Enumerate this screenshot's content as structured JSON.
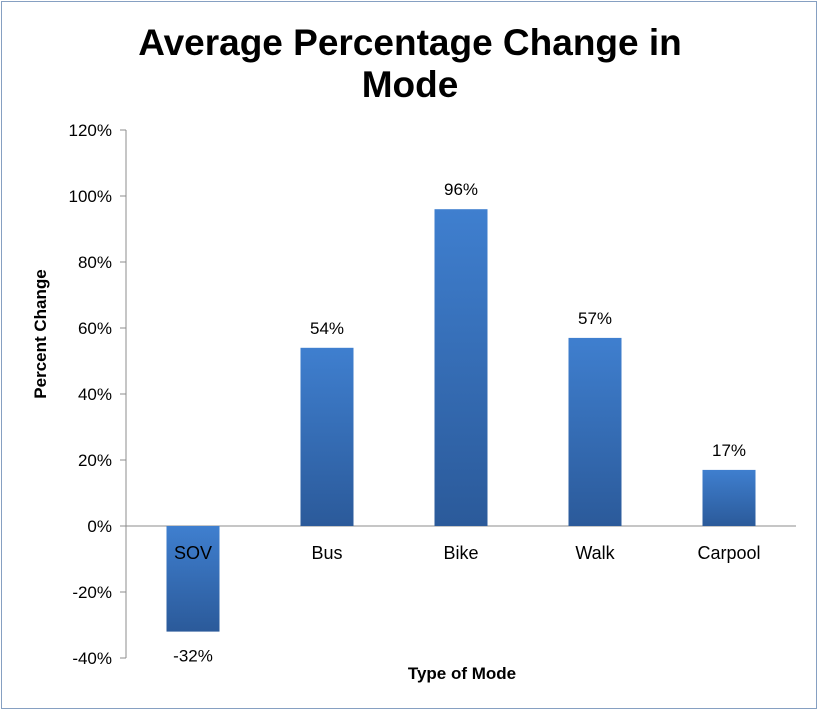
{
  "chart_data": {
    "type": "bar",
    "title": "Average Percentage Change in\nMode",
    "xlabel": "Type of Mode",
    "ylabel": "Percent Change",
    "categories": [
      "SOV",
      "Bus",
      "Bike",
      "Walk",
      "Carpool"
    ],
    "values": [
      -32,
      54,
      96,
      57,
      17
    ],
    "data_labels": [
      "-32%",
      "54%",
      "96%",
      "57%",
      "17%"
    ],
    "ylim": [
      -40,
      120
    ],
    "yticks": [
      -40,
      -20,
      0,
      20,
      40,
      60,
      80,
      100,
      120
    ],
    "ytick_labels": [
      "-40%",
      "-20%",
      "0%",
      "20%",
      "40%",
      "60%",
      "80%",
      "100%",
      "120%"
    ],
    "grid": false,
    "legend": "none",
    "bar_color_top": "#3f7fcf",
    "bar_color_bottom": "#2b5a9a",
    "frame_color": "#86a0c2",
    "axis_color": "#8c8c8c"
  }
}
